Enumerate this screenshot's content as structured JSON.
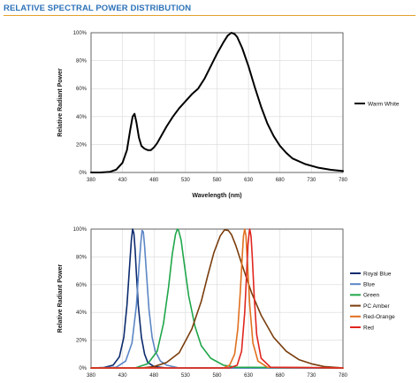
{
  "heading": "RELATIVE SPECTRAL POWER DISTRIBUTION",
  "chart_data": [
    {
      "type": "line",
      "xlabel": "Wavelength (nm)",
      "ylabel": "Relative Radiant Power",
      "xlim": [
        380,
        780
      ],
      "ylim": [
        0,
        100
      ],
      "x_ticks": [
        "380",
        "430",
        "480",
        "530",
        "580",
        "630",
        "680",
        "730",
        "780"
      ],
      "y_ticks": [
        "0%",
        "20%",
        "40%",
        "60%",
        "80%",
        "100%"
      ],
      "legend_position": "right",
      "series": [
        {
          "name": "Warm White",
          "color": "#000000",
          "x": [
            380,
            395,
            410,
            420,
            430,
            437,
            442,
            446,
            449,
            452,
            456,
            460,
            465,
            470,
            475,
            480,
            485,
            490,
            500,
            510,
            520,
            530,
            540,
            550,
            560,
            570,
            580,
            590,
            597,
            603,
            608,
            612,
            620,
            630,
            640,
            650,
            660,
            670,
            680,
            690,
            700,
            720,
            740,
            760,
            780
          ],
          "values": [
            0,
            0,
            0.5,
            2,
            7,
            16,
            30,
            40,
            42,
            36,
            25,
            19,
            17,
            16,
            16,
            18,
            21,
            25,
            33,
            40,
            46,
            51,
            56,
            60,
            67,
            76,
            85,
            93,
            98,
            100,
            99,
            97,
            89,
            76,
            61,
            47,
            35,
            26,
            19,
            14,
            10,
            6,
            3.5,
            2,
            1
          ]
        }
      ]
    },
    {
      "type": "line",
      "xlabel": "",
      "ylabel": "Relative Radiant Power",
      "xlim": [
        380,
        780
      ],
      "ylim": [
        0,
        100
      ],
      "x_ticks": [
        "380",
        "430",
        "480",
        "530",
        "580",
        "630",
        "680",
        "730",
        "780"
      ],
      "y_ticks": [
        "0%",
        "20%",
        "40%",
        "60%",
        "80%",
        "100%"
      ],
      "legend_position": "right",
      "series": [
        {
          "name": "Royal Blue",
          "color": "#0c2b6e",
          "x": [
            380,
            400,
            415,
            425,
            432,
            437,
            441,
            444,
            446,
            448,
            450,
            452,
            455,
            460,
            465,
            470,
            480,
            500,
            780
          ],
          "values": [
            0,
            0.3,
            2,
            8,
            22,
            45,
            72,
            92,
            100,
            97,
            85,
            68,
            45,
            22,
            10,
            4,
            1,
            0,
            0
          ]
        },
        {
          "name": "Blue",
          "color": "#5b86c5",
          "x": [
            380,
            420,
            435,
            445,
            452,
            456,
            459,
            461,
            463,
            465,
            468,
            472,
            477,
            482,
            490,
            500,
            520,
            780
          ],
          "values": [
            0,
            0.5,
            5,
            18,
            45,
            72,
            90,
            99,
            98,
            88,
            68,
            42,
            22,
            12,
            5,
            2,
            0,
            0
          ]
        },
        {
          "name": "Green",
          "color": "#1fa64a",
          "x": [
            380,
            450,
            470,
            485,
            495,
            503,
            509,
            514,
            517,
            519,
            523,
            528,
            535,
            545,
            555,
            570,
            590,
            610,
            780
          ],
          "values": [
            0,
            0,
            3,
            12,
            32,
            58,
            82,
            96,
            100,
            99,
            92,
            75,
            52,
            30,
            16,
            7,
            2,
            0.5,
            0
          ]
        },
        {
          "name": "PC Amber",
          "color": "#7a3d0c",
          "x": [
            380,
            460,
            480,
            500,
            520,
            540,
            555,
            565,
            575,
            585,
            592,
            598,
            603,
            610,
            620,
            635,
            650,
            670,
            690,
            710,
            730,
            750,
            780
          ],
          "values": [
            0,
            0,
            1,
            4,
            11,
            28,
            48,
            66,
            83,
            95,
            99.5,
            99,
            96,
            88,
            74,
            54,
            38,
            22,
            12,
            6,
            3,
            1,
            0
          ]
        },
        {
          "name": "Red-Orange",
          "color": "#e0701f",
          "x": [
            380,
            590,
            600,
            608,
            613,
            617,
            620,
            622,
            624,
            626,
            628,
            632,
            637,
            645,
            660,
            780
          ],
          "values": [
            0,
            0,
            2,
            10,
            28,
            55,
            80,
            95,
            100,
            95,
            78,
            45,
            18,
            5,
            0.5,
            0
          ]
        },
        {
          "name": "Red",
          "color": "#e0261f",
          "x": [
            380,
            600,
            612,
            619,
            624,
            627,
            629,
            631,
            632,
            634,
            636,
            639,
            643,
            650,
            665,
            780
          ],
          "values": [
            0,
            0,
            2,
            12,
            40,
            68,
            88,
            97,
            100,
            95,
            80,
            52,
            24,
            7,
            0.5,
            0
          ]
        }
      ]
    }
  ]
}
